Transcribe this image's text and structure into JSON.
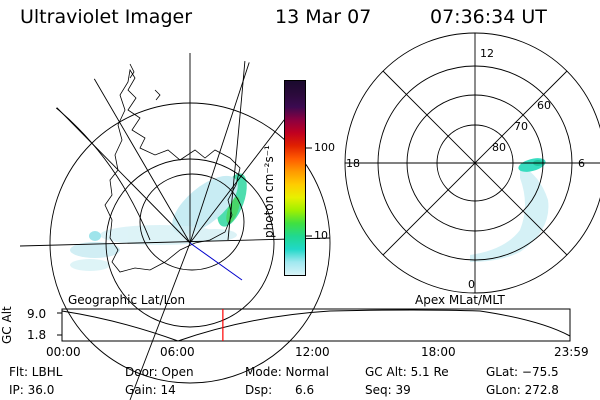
{
  "header": {
    "title": "Ultraviolet Imager",
    "date": "13 Mar 07",
    "time": "07:36:34 UT"
  },
  "left_map": {
    "label": "Geographic Lat/Lon"
  },
  "right_map": {
    "label": "Apex MLat/MLT",
    "mlt_labels": {
      "top": "12",
      "left": "18",
      "right": "6",
      "bottom": "0"
    },
    "lat_labels": [
      "60",
      "70",
      "80"
    ]
  },
  "colorbar": {
    "unit_label": "photon cm⁻²s⁻¹",
    "ticks": [
      "100",
      "10"
    ],
    "colors": [
      "#1a0a2e",
      "#2a0a3a",
      "#3b0a50",
      "#8b0040",
      "#c00020",
      "#e02000",
      "#ff5a00",
      "#ff9a00",
      "#ffcc00",
      "#e8f000",
      "#9ff000",
      "#40e040",
      "#20d890",
      "#20d8c8",
      "#a0e8f0",
      "#d8f4f8"
    ]
  },
  "orbit": {
    "axis_label": "GC Alt",
    "y_ticks": [
      "9.0",
      "1.8"
    ],
    "x_ticks": [
      "00:00",
      "06:00",
      "12:00",
      "18:00",
      "23:59"
    ],
    "current_time_hours": 7.6,
    "marker_color": "#ff0000"
  },
  "status": {
    "row1": [
      {
        "label": "Flt: LBHL"
      },
      {
        "label": "Door: Open"
      },
      {
        "label": "Mode: Normal"
      },
      {
        "label": "GC Alt: 5.1 Re"
      },
      {
        "label": "GLat: −75.5"
      }
    ],
    "row2": [
      {
        "label": "IP: 36.0"
      },
      {
        "label": "Gain: 14"
      },
      {
        "label": "Dsp:      6.6"
      },
      {
        "label": "Seq: 39"
      },
      {
        "label": "GLon: 272.8"
      }
    ]
  }
}
